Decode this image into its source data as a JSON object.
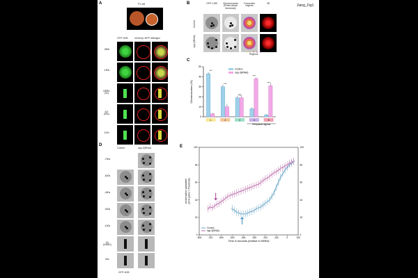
{
  "header": {
    "figure_id": "Jiang_Fig1"
  },
  "panel_a": {
    "letter": "A",
    "cell_label": "P1 cell",
    "columns": [
      "GFP::H2B",
      "mCherry::NPP-3",
      "Merged"
    ],
    "rows": [
      "-360s",
      "-150s",
      "NEBD\n(0s)",
      "AO\n(60s)",
      "120s"
    ]
  },
  "panel_b": {
    "letter": "B",
    "columns": [
      "GFP::H2B",
      "Chromosomes\n(Pixels above\nthreshold)",
      "Concentric\nregions",
      "3D"
    ],
    "rows": [
      "Control",
      "npp-3(RNAi)"
    ],
    "region_numbers": [
      "1",
      "2",
      "3",
      "4",
      "5"
    ],
    "regions_label": "Regions"
  },
  "panel_c": {
    "letter": "C",
    "ylabel": "Chromosomes (%)",
    "legend": [
      "Control",
      "npp-3(RNAi)"
    ],
    "peripheral_label": "Peripheral regions",
    "significance": [
      "***",
      "***",
      "ns",
      "***",
      "***"
    ],
    "colors": {
      "control": "#9fd1ea",
      "rnai": "#f2a8e6"
    },
    "chart_data": {
      "type": "bar",
      "categories": [
        "1",
        "2",
        "3",
        "4",
        "5"
      ],
      "series": [
        {
          "name": "Control",
          "values": [
            43,
            30,
            19,
            8,
            2
          ]
        },
        {
          "name": "npp-3(RNAi)",
          "values": [
            3,
            10,
            19,
            38,
            31
          ]
        }
      ],
      "errors": [
        [
          1.5,
          2,
          2,
          1.5,
          0.8
        ],
        [
          1,
          3,
          3,
          1.5,
          3
        ]
      ],
      "yticks": [
        "0",
        "10",
        "20",
        "30",
        "40",
        "50"
      ],
      "ylim": [
        0,
        50
      ]
    }
  },
  "panel_d": {
    "letter": "D",
    "columns": [
      "Control",
      "npp-3(RNAi)"
    ],
    "rows": [
      "-750s",
      "-600s",
      "-450s",
      "-300s",
      "-150s",
      "0s\n(NEBD)",
      "60s"
    ],
    "footer": "GFP::H2B"
  },
  "panel_e": {
    "letter": "E",
    "ylabel": "condensation parameter\n(20% pixels > Threshold)",
    "xlabel": "Time in seconds (relative to NEBD)",
    "legend": [
      "Control",
      "npp-3(RNAi)"
    ],
    "colors": {
      "control": "#2a7fb0",
      "rnai": "#a0308a"
    },
    "xticks": [
      "-800",
      "-700",
      "-600",
      "-500",
      "-400",
      "-300",
      "-200",
      "-100",
      "0",
      "100"
    ],
    "yticks_left": [
      "0",
      "20",
      "40",
      "60",
      "80",
      "100"
    ],
    "yticks_right": [
      "0",
      "20",
      "40",
      "60",
      "80",
      "100"
    ],
    "chart_data": {
      "type": "line",
      "xlim": [
        -800,
        100
      ],
      "ylim": [
        0,
        100
      ],
      "series": [
        {
          "name": "Control",
          "x": [
            -500,
            -480,
            -460,
            -440,
            -420,
            -400,
            -380,
            -360,
            -340,
            -320,
            -300,
            -280,
            -260,
            -240,
            -220,
            -200,
            -180,
            -160,
            -140,
            -120,
            -100,
            -80,
            -60,
            -40,
            -20,
            0,
            20,
            40,
            60
          ],
          "y": [
            30,
            28,
            26,
            25,
            24,
            24,
            24,
            25,
            26,
            27,
            28,
            30,
            31,
            32,
            34,
            36,
            38,
            40,
            44,
            48,
            54,
            60,
            66,
            70,
            74,
            77,
            80,
            82,
            84
          ]
        },
        {
          "name": "npp-3(RNAi)",
          "x": [
            -720,
            -700,
            -680,
            -660,
            -640,
            -620,
            -600,
            -580,
            -560,
            -540,
            -520,
            -500,
            -480,
            -460,
            -440,
            -420,
            -400,
            -380,
            -360,
            -340,
            -320,
            -300,
            -280,
            -260,
            -240,
            -220,
            -200,
            -180,
            -160,
            -140,
            -120,
            -100,
            -80,
            -60,
            -40,
            -20,
            0,
            20,
            40,
            60
          ],
          "y": [
            30,
            32,
            31,
            33,
            35,
            36,
            38,
            40,
            42,
            44,
            45,
            46,
            47,
            48,
            49,
            50,
            51,
            52,
            53,
            54,
            55,
            56,
            57,
            58,
            60,
            62,
            64,
            65,
            67,
            69,
            71,
            72,
            74,
            76,
            77,
            79,
            80,
            82,
            83,
            84
          ]
        }
      ]
    }
  }
}
